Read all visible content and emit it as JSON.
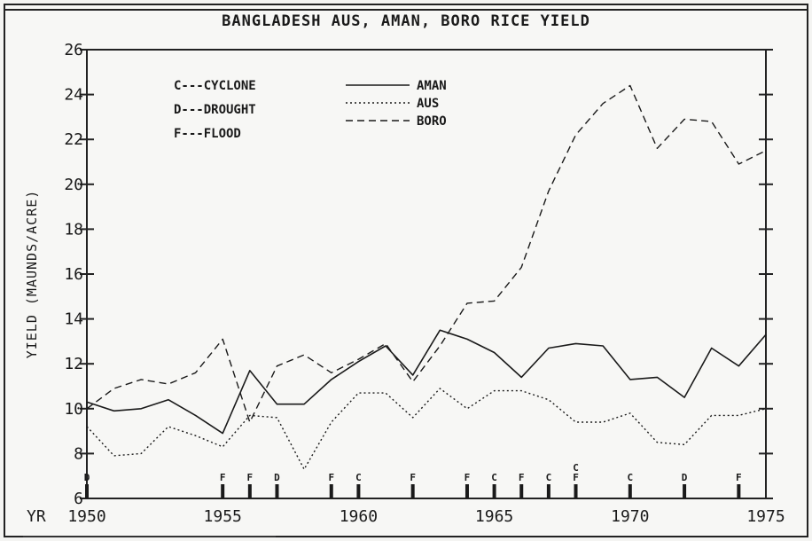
{
  "chart_data": {
    "type": "line",
    "title": "BANGLADESH AUS, AMAN, BORO RICE YIELD",
    "ylabel": "YIELD (MAUNDS/ACRE)",
    "x_axis_prefix": "YR",
    "xlim": [
      1950,
      1975
    ],
    "ylim": [
      6,
      26
    ],
    "x_ticks": [
      1950,
      1955,
      1960,
      1965,
      1970,
      1975
    ],
    "y_ticks": [
      6,
      8,
      10,
      12,
      14,
      16,
      18,
      20,
      22,
      24,
      26
    ],
    "x": [
      1950,
      1951,
      1952,
      1953,
      1954,
      1955,
      1956,
      1957,
      1958,
      1959,
      1960,
      1961,
      1962,
      1963,
      1964,
      1965,
      1966,
      1967,
      1968,
      1969,
      1970,
      1971,
      1972,
      1973,
      1974,
      1975
    ],
    "series": [
      {
        "name": "AMAN",
        "style": "solid",
        "values": [
          10.3,
          9.9,
          10.0,
          10.4,
          9.7,
          8.9,
          11.7,
          10.2,
          10.2,
          11.3,
          12.1,
          12.8,
          11.5,
          13.5,
          13.1,
          12.5,
          11.4,
          12.7,
          12.9,
          12.8,
          11.3,
          11.4,
          10.5,
          12.7,
          11.9,
          13.3
        ]
      },
      {
        "name": "AUS",
        "style": "dotted",
        "values": [
          9.2,
          7.9,
          8.0,
          9.2,
          8.8,
          8.3,
          9.7,
          9.6,
          7.3,
          9.4,
          10.7,
          10.7,
          9.6,
          10.9,
          10.0,
          10.8,
          10.8,
          10.4,
          9.4,
          9.4,
          9.8,
          8.5,
          8.4,
          9.7,
          9.7,
          10.0
        ]
      },
      {
        "name": "BORO",
        "style": "dashed",
        "values": [
          10.0,
          10.9,
          11.3,
          11.1,
          11.6,
          13.1,
          9.4,
          11.9,
          12.4,
          11.6,
          12.2,
          12.9,
          11.2,
          12.8,
          14.7,
          14.8,
          16.3,
          19.7,
          22.2,
          23.6,
          24.4,
          21.6,
          22.9,
          22.8,
          20.9,
          21.5
        ]
      }
    ],
    "legend_placement": "top-left",
    "event_legend": [
      {
        "code": "C",
        "text": "C---CYCLONE"
      },
      {
        "code": "D",
        "text": "D---DROUGHT"
      },
      {
        "code": "F",
        "text": "F---FLOOD"
      }
    ],
    "events": [
      {
        "year": 1950,
        "labels": [
          "D"
        ]
      },
      {
        "year": 1955,
        "labels": [
          "F"
        ]
      },
      {
        "year": 1956,
        "labels": [
          "F"
        ]
      },
      {
        "year": 1957,
        "labels": [
          "D"
        ]
      },
      {
        "year": 1959,
        "labels": [
          "F"
        ]
      },
      {
        "year": 1960,
        "labels": [
          "C"
        ]
      },
      {
        "year": 1962,
        "labels": [
          "F"
        ]
      },
      {
        "year": 1964,
        "labels": [
          "F"
        ]
      },
      {
        "year": 1965,
        "labels": [
          "C"
        ]
      },
      {
        "year": 1966,
        "labels": [
          "F"
        ]
      },
      {
        "year": 1967,
        "labels": [
          "C"
        ]
      },
      {
        "year": 1968,
        "labels": [
          "C",
          "F"
        ]
      },
      {
        "year": 1970,
        "labels": [
          "C"
        ]
      },
      {
        "year": 1972,
        "labels": [
          "D"
        ]
      },
      {
        "year": 1974,
        "labels": [
          "F"
        ]
      }
    ],
    "grid": false
  }
}
